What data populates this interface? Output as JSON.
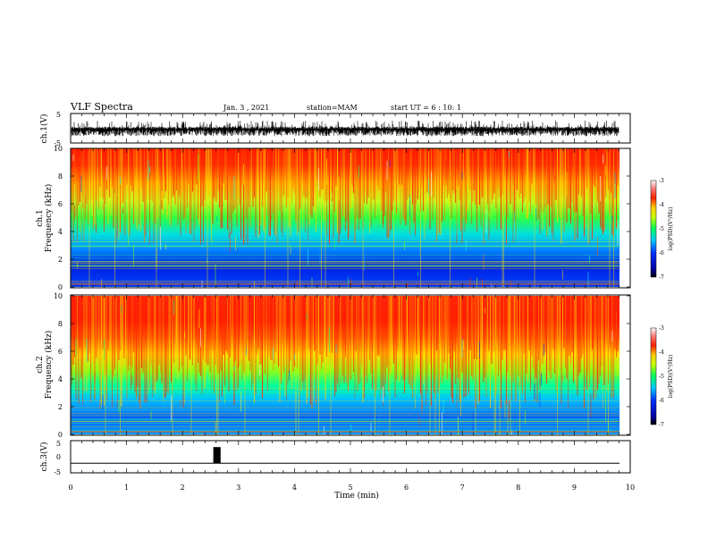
{
  "header": {
    "title": "VLF Spectra",
    "date": "Jan. 3 , 2021",
    "station": "station=MAM",
    "start": "start UT =  6 : 10: 1"
  },
  "chart_data": [
    {
      "type": "line",
      "ylabel": "ch.1(V)",
      "x_range": [
        0,
        10
      ],
      "y_range": [
        -5,
        5
      ],
      "y_ticks": [
        "5",
        "-5"
      ],
      "trace": "dense waveform filling approximately 0 to -2 V over 0–9.8 min"
    },
    {
      "type": "heatmap",
      "ylabel_line1": "ch.1",
      "ylabel_line2": "Frequency (kHz)",
      "x_range": [
        0,
        10
      ],
      "y_range": [
        0,
        10
      ],
      "y_ticks": [
        "0",
        "2",
        "4",
        "6",
        "8",
        "10"
      ],
      "data_extent_min": 9.8,
      "colorbar": {
        "label": "log(PSD)(V²/Hz)",
        "range": [
          -7,
          -3
        ],
        "ticks": [
          "-3",
          "-4",
          "-5",
          "-6",
          "-7"
        ]
      }
    },
    {
      "type": "heatmap",
      "ylabel_line1": "ch.2",
      "ylabel_line2": "Frequency (kHz)",
      "x_range": [
        0,
        10
      ],
      "y_range": [
        0,
        10
      ],
      "y_ticks": [
        "0",
        "2",
        "4",
        "6",
        "8",
        "10"
      ],
      "data_extent_min": 9.8,
      "colorbar": {
        "label": "log(PSD)(V²/Hz)",
        "range": [
          -7,
          -3
        ],
        "ticks": [
          "-3",
          "-4",
          "-5",
          "-6",
          "-7"
        ]
      }
    },
    {
      "type": "line",
      "ylabel": "ch.3(V)",
      "x_range": [
        0,
        10
      ],
      "y_range": [
        -5,
        5
      ],
      "y_ticks": [
        "5",
        "0",
        "-5"
      ],
      "baseline_value": -2,
      "pulse": {
        "start_min": 2.55,
        "end_min": 2.68,
        "value": 3
      }
    }
  ],
  "xaxis": {
    "label": "Time (min)",
    "ticks": [
      "0",
      "1",
      "2",
      "3",
      "4",
      "5",
      "6",
      "7",
      "8",
      "9",
      "10"
    ]
  },
  "colors": {
    "axes": "#000000",
    "colormap": [
      "#000080",
      "#0000ff",
      "#00aaff",
      "#00ffff",
      "#00ff00",
      "#ffff00",
      "#ff0000",
      "#ffffff"
    ]
  }
}
